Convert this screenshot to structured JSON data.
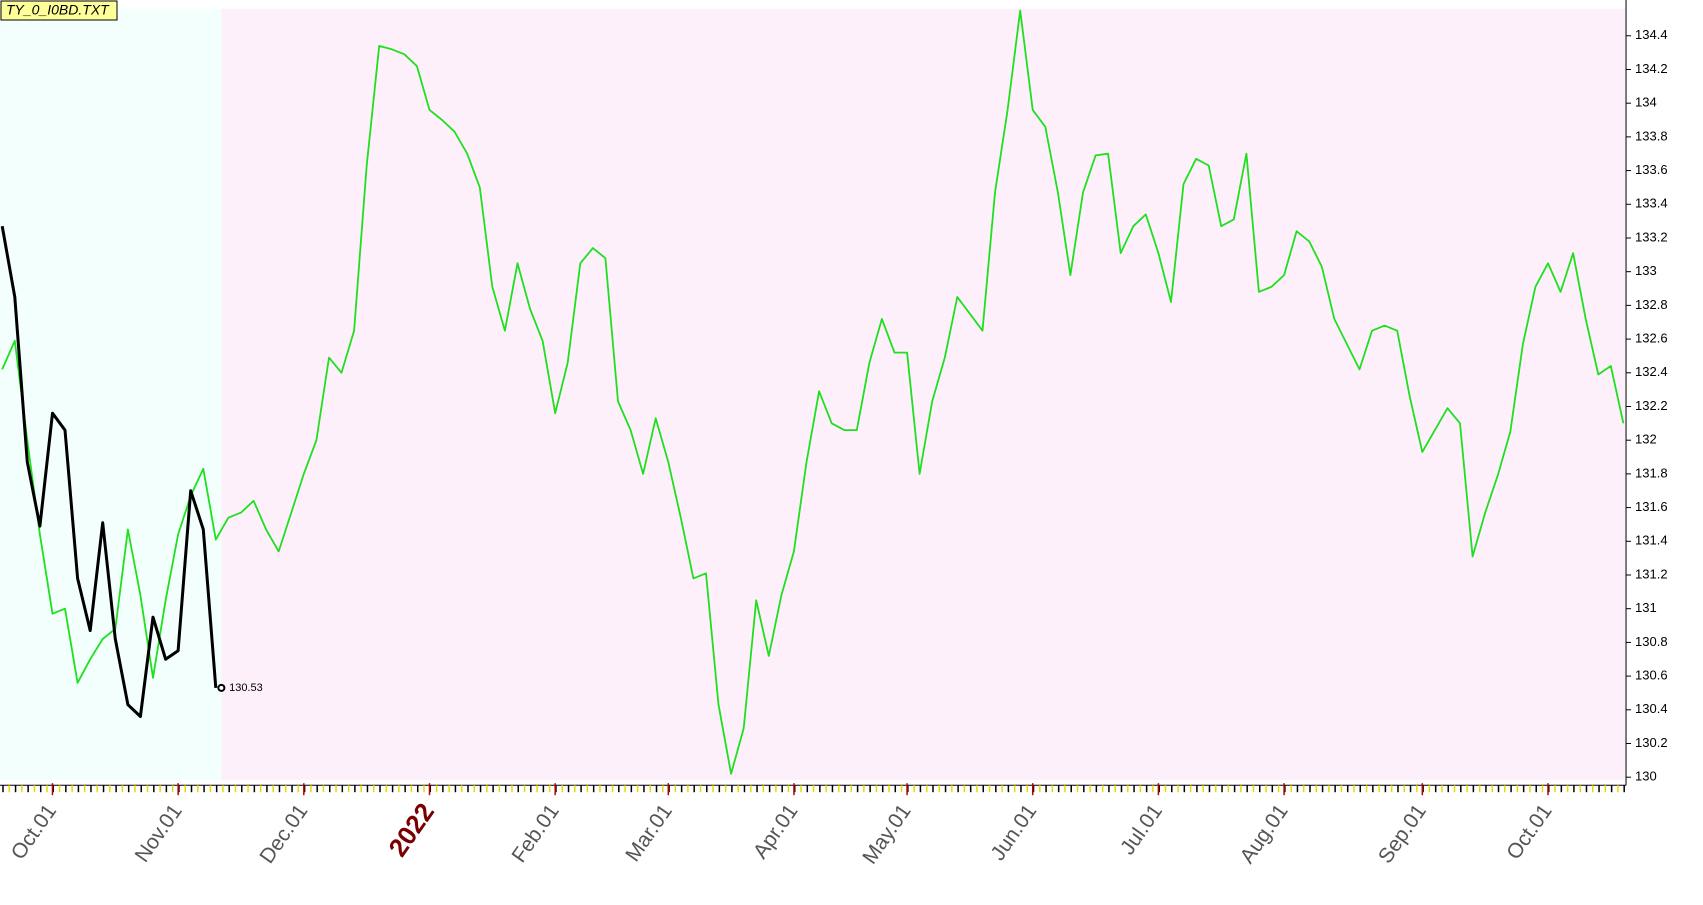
{
  "chart_data": {
    "type": "line",
    "title": "TY_0_I0BD.TXT",
    "categories": [
      null,
      null,
      null,
      null,
      "Oct.01",
      null,
      null,
      null,
      null,
      null,
      null,
      null,
      null,
      null,
      "Nov.01",
      null,
      null,
      null,
      null,
      null,
      null,
      null,
      null,
      null,
      "Dec.01",
      null,
      null,
      null,
      null,
      null,
      null,
      null,
      null,
      null,
      "2022",
      null,
      null,
      null,
      null,
      null,
      null,
      null,
      null,
      null,
      "Feb.01",
      null,
      null,
      null,
      null,
      null,
      null,
      null,
      null,
      "Mar.01",
      null,
      null,
      null,
      null,
      null,
      null,
      null,
      null,
      null,
      "Apr.01",
      null,
      null,
      null,
      null,
      null,
      null,
      null,
      null,
      "May.01",
      null,
      null,
      null,
      null,
      null,
      null,
      null,
      null,
      null,
      "Jun.01",
      null,
      null,
      null,
      null,
      null,
      null,
      null,
      null,
      null,
      "Jul.01",
      null,
      null,
      null,
      null,
      null,
      null,
      null,
      null,
      null,
      "Aug.01",
      null,
      null,
      null,
      null,
      null,
      null,
      null,
      null,
      null,
      null,
      "Sep.01",
      null,
      null,
      null,
      null,
      null,
      null,
      null,
      null,
      null,
      "Oct.01",
      null,
      null,
      null,
      null,
      null,
      null
    ],
    "series": [
      {
        "color": "#1ee01e",
        "values": [
          132.42,
          132.59,
          132.0,
          131.44,
          130.97,
          131.0,
          130.56,
          130.7,
          130.82,
          130.88,
          131.47,
          131.08,
          130.59,
          131.05,
          131.44,
          131.67,
          131.83,
          131.41,
          131.54,
          131.57,
          131.64,
          131.47,
          131.34,
          131.57,
          131.8,
          132.0,
          132.49,
          132.4,
          132.65,
          133.63,
          134.34,
          134.32,
          134.29,
          134.22,
          133.96,
          133.9,
          133.83,
          133.7,
          133.5,
          132.91,
          132.65,
          133.05,
          132.78,
          132.59,
          132.16,
          132.46,
          133.05,
          133.14,
          133.08,
          132.23,
          132.06,
          131.8,
          132.13,
          131.87,
          131.54,
          131.18,
          131.21,
          130.43,
          130.02,
          130.29,
          131.05,
          130.72,
          131.08,
          131.34,
          131.87,
          132.29,
          132.1,
          132.06,
          132.06,
          132.46,
          132.72,
          132.52,
          132.52,
          131.8,
          132.23,
          132.49,
          132.85,
          132.75,
          132.65,
          133.47,
          133.96,
          134.55,
          133.96,
          133.86,
          133.47,
          132.98,
          133.47,
          133.69,
          133.7,
          133.11,
          133.27,
          133.34,
          133.11,
          132.82,
          133.52,
          133.67,
          133.63,
          133.27,
          133.31,
          133.7,
          132.88,
          132.91,
          132.98,
          133.24,
          133.18,
          133.03,
          132.72,
          132.57,
          132.42,
          132.65,
          132.68,
          132.65,
          132.26,
          131.93,
          132.06,
          132.19,
          132.1,
          131.31,
          131.57,
          131.79,
          132.05,
          132.57,
          132.91,
          133.05,
          132.88,
          133.11,
          132.72,
          132.39,
          132.44,
          132.1
        ]
      },
      {
        "color": "#000000",
        "values": [
          133.27,
          132.85,
          131.87,
          131.49,
          132.16,
          132.06,
          131.18,
          130.87,
          131.51,
          130.82,
          130.43,
          130.36,
          130.95,
          130.7,
          130.75,
          131.7,
          131.47,
          130.53,
          null,
          null,
          null,
          null,
          null,
          null,
          null,
          null,
          null,
          null,
          null,
          null,
          null,
          null,
          null,
          null,
          null,
          null,
          null,
          null,
          null,
          null,
          null,
          null,
          null,
          null,
          null,
          null,
          null,
          null,
          null,
          null,
          null,
          null,
          null,
          null,
          null,
          null,
          null,
          null,
          null,
          null,
          null,
          null,
          null,
          null,
          null,
          null,
          null,
          null,
          null,
          null,
          null,
          null,
          null,
          null,
          null,
          null,
          null,
          null,
          null,
          null,
          null,
          null,
          null,
          null,
          null,
          null,
          null,
          null,
          null,
          null,
          null,
          null,
          null,
          null,
          null,
          null,
          null,
          null,
          null,
          null,
          null,
          null,
          null,
          null,
          null,
          null,
          null,
          null,
          null,
          null,
          null,
          null,
          null,
          null,
          null,
          null,
          null,
          null,
          null,
          null,
          null,
          null,
          null,
          null,
          null,
          null,
          null,
          null,
          null,
          null
        ]
      }
    ],
    "ylim": [
      130,
      134.56
    ],
    "yticks": [
      130,
      130.2,
      130.4,
      130.6,
      130.8,
      131,
      131.2,
      131.4,
      131.6,
      131.8,
      132,
      132.2,
      132.4,
      132.6,
      132.8,
      133,
      133.2,
      133.4,
      133.6,
      133.8,
      134,
      134.2,
      134.4
    ],
    "y_axis_side": "right",
    "grid": false
  }
}
